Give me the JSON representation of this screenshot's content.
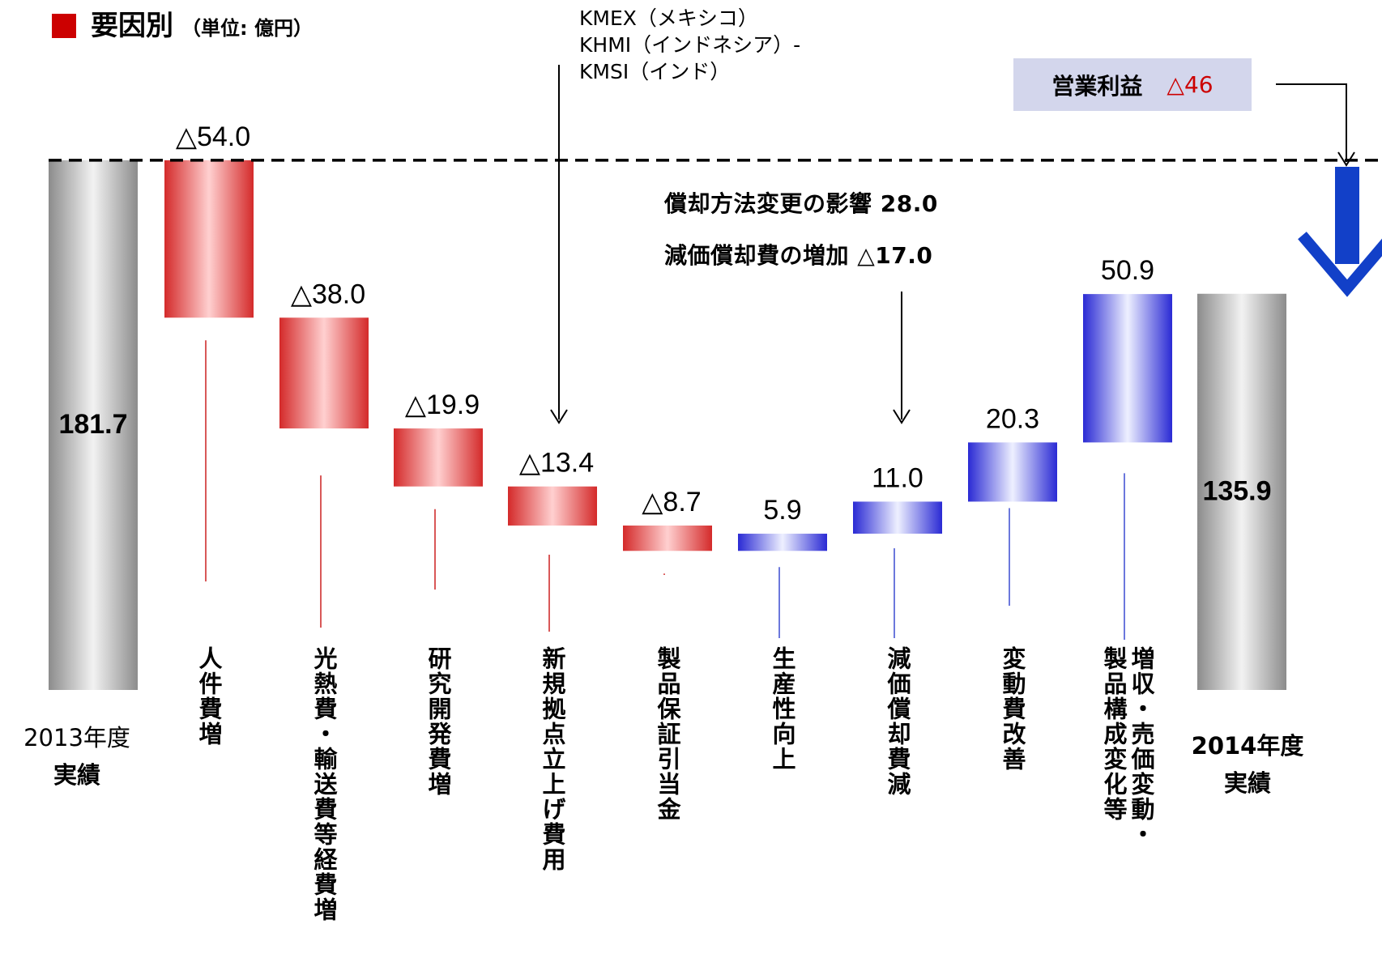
{
  "header": {
    "title": "要因別",
    "unit": "（単位: 億円）"
  },
  "notes": {
    "kmex_lines": [
      "KMEX（メキシコ）",
      "KHMI（インドネシア）-",
      "KMSI（インド）"
    ],
    "operating_profit_label": "営業利益",
    "operating_profit_value": "△46",
    "depreciation_effect": "償却方法変更の影響  28.0",
    "depreciation_increase": "減価償却費の増加  △17.0"
  },
  "colors": {
    "negative": "#d42a2a",
    "positive": "#2a2ad4",
    "total": "#8c8c8c",
    "arrow": "#1240c8",
    "title_square": "#cc0000"
  },
  "chart_data": {
    "type": "bar",
    "subtype": "waterfall",
    "title": "要因別",
    "unit": "億円",
    "ylim": [
      0,
      200
    ],
    "start": {
      "category": "2013年度実績",
      "value": 181.7,
      "label": "181.7"
    },
    "end": {
      "category": "2014年度実績",
      "value": 135.9,
      "label": "135.9"
    },
    "reference_line": {
      "value": 181.7,
      "style": "dashed"
    },
    "factors": [
      {
        "category": "人件費増",
        "value": -54.0,
        "label": "△54.0"
      },
      {
        "category": "光熱費・輸送費等経費増",
        "value": -38.0,
        "label": "△38.0"
      },
      {
        "category": "研究開発費増",
        "value": -19.9,
        "label": "△19.9"
      },
      {
        "category": "新規拠点立上げ費用",
        "value": -13.4,
        "label": "△13.4"
      },
      {
        "category": "製品保証引当金",
        "value": -8.7,
        "label": "△8.7"
      },
      {
        "category": "生産性向上",
        "value": 5.9,
        "label": "5.9"
      },
      {
        "category": "減価償却費減",
        "value": 11.0,
        "label": "11.0"
      },
      {
        "category": "変動費改善",
        "value": 20.3,
        "label": "20.3"
      },
      {
        "category": "増収・売価変動・製品構成変化等",
        "value": 50.9,
        "label": "50.9"
      }
    ],
    "category_lines": [
      [
        "人件費増"
      ],
      [
        "光熱費・輸送費等経費増"
      ],
      [
        "研究開発費増"
      ],
      [
        "新規拠点立上げ費用"
      ],
      [
        "製品保証引当金"
      ],
      [
        "生産性向上"
      ],
      [
        "減価償却費減"
      ],
      [
        "変動費改善"
      ],
      [
        "増収・売価変動・",
        "製品構成変化等"
      ]
    ],
    "start_label_lines": {
      "year": "2013年度",
      "sub": "実績"
    },
    "end_label_lines": {
      "year": "2014年度",
      "sub": "実績"
    }
  }
}
